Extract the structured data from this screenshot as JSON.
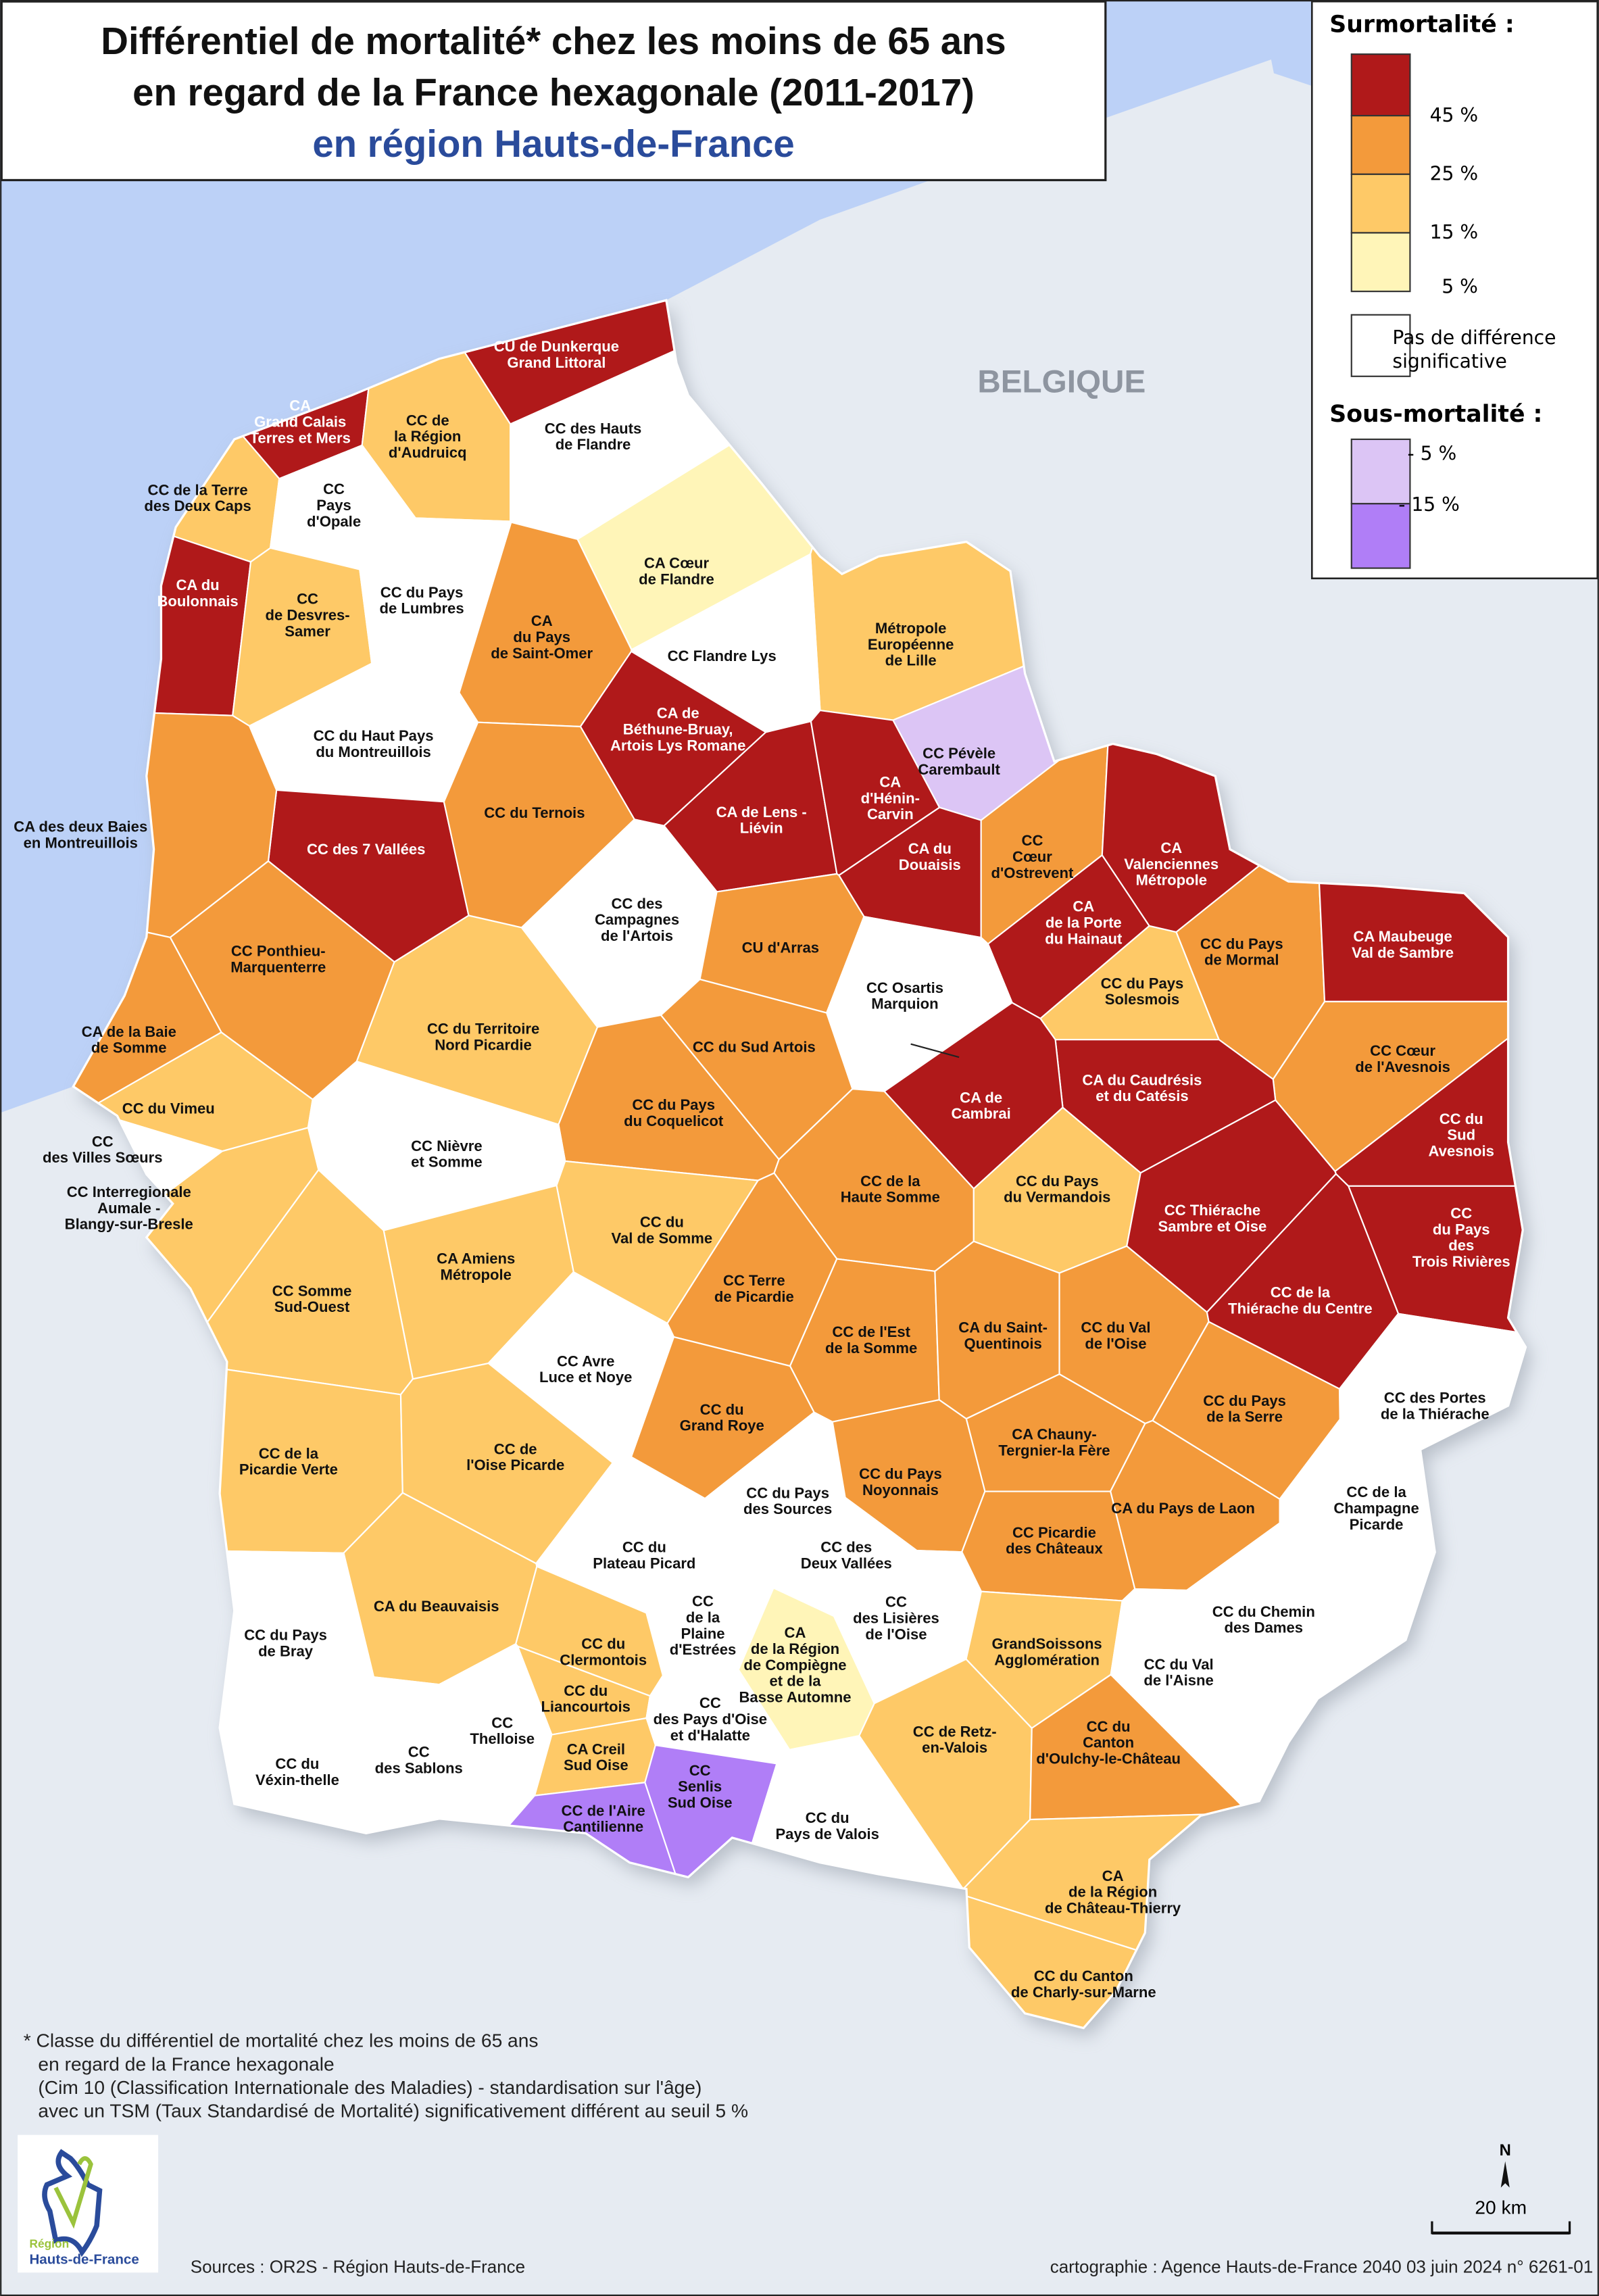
{
  "title": {
    "line1": "Différentiel de mortalité* chez les moins de 65 ans",
    "line2": "en regard de la France hexagonale (2011-2017)",
    "line3": "en région Hauts-de-France"
  },
  "neighbor_label": "BELGIQUE",
  "colors": {
    "sea": "#bcd1f7",
    "land": "#e6ebf2",
    "title_blue": "#2a4b9b",
    "classes": {
      "45": "#b0191a",
      "25": "#f39a3b",
      "15": "#fec967",
      "5": "#fff5b8",
      "ns": "#ffffff",
      "-5": "#dcc5f5",
      "-15": "#b07ef7"
    }
  },
  "legend": {
    "over_title": "Surmortalité :",
    "over_ticks": [
      "45 %",
      "25 %",
      "15 %",
      "5 %"
    ],
    "ns_label": [
      "Pas de différence",
      "significative"
    ],
    "under_title": "Sous-mortalité :",
    "under_ticks": [
      "- 5 %",
      "- 15 %"
    ]
  },
  "footnote": [
    "* Classe du différentiel de mortalité chez les moins de 65 ans",
    "en regard de la France hexagonale",
    "(Cim 10 (Classification Internationale des Maladies) - standardisation sur l'âge)",
    "avec un TSM (Taux Standardisé de Mortalité) significativement différent au seuil 5 %"
  ],
  "logo": {
    "line1": "Région",
    "line2": "Hauts-de-France"
  },
  "sources": "Sources : OR2S - Région Hauts-de-France",
  "credits": "cartographie : Agence Hauts-de-France 2040   03 juin 2024   n° 6261-01",
  "north": "N",
  "scale": "20 km",
  "territories": [
    {
      "name": [
        "CU de Dunkerque",
        "Grand Littoral"
      ],
      "class": "45"
    },
    {
      "name": [
        "CA",
        "Grand Calais",
        "Terres et Mers"
      ],
      "class": "45"
    },
    {
      "name": [
        "CC de",
        "la Région",
        "d'Audruicq"
      ],
      "class": "15"
    },
    {
      "name": [
        "CC des Hauts",
        "de Flandre"
      ],
      "class": "ns"
    },
    {
      "name": [
        "CC de la Terre",
        "des Deux Caps"
      ],
      "class": "15"
    },
    {
      "name": [
        "CC",
        "Pays",
        "d'Opale"
      ],
      "class": "ns"
    },
    {
      "name": [
        "CA Cœur",
        "de Flandre"
      ],
      "class": "5"
    },
    {
      "name": [
        "CA du",
        "Boulonnais"
      ],
      "class": "45"
    },
    {
      "name": [
        "CC",
        "de Desvres-",
        "Samer"
      ],
      "class": "15"
    },
    {
      "name": [
        "CC du Pays",
        "de Lumbres"
      ],
      "class": "ns"
    },
    {
      "name": [
        "CA",
        "du Pays",
        "de Saint-Omer"
      ],
      "class": "25"
    },
    {
      "name": [
        "Métropole",
        "Européenne",
        "de Lille"
      ],
      "class": "15"
    },
    {
      "name": [
        "CC Flandre Lys"
      ],
      "class": "ns"
    },
    {
      "name": [
        "CA de",
        "Béthune-Bruay,",
        "Artois Lys Romane"
      ],
      "class": "45"
    },
    {
      "name": [
        "CC du Haut Pays",
        "du Montreuillois"
      ],
      "class": "ns"
    },
    {
      "name": [
        "CC Pévèle",
        "Carembault"
      ],
      "class": "-5"
    },
    {
      "name": [
        "CA de Lens -",
        "Liévin"
      ],
      "class": "45"
    },
    {
      "name": [
        "CA",
        "d'Hénin-",
        "Carvin"
      ],
      "class": "45"
    },
    {
      "name": [
        "CA du",
        "Douaisis"
      ],
      "class": "45"
    },
    {
      "name": [
        "CC",
        "Cœur",
        "d'Ostrevent"
      ],
      "class": "25"
    },
    {
      "name": [
        "CA",
        "Valenciennes",
        "Métropole"
      ],
      "class": "45"
    },
    {
      "name": [
        "CC des 7 Vallées"
      ],
      "class": "45"
    },
    {
      "name": [
        "CC du Ternois"
      ],
      "class": "25"
    },
    {
      "name": [
        "CA des deux Baies",
        "en Montreuillois"
      ],
      "class": "25"
    },
    {
      "name": [
        "CC des",
        "Campagnes",
        "de l'Artois"
      ],
      "class": "ns"
    },
    {
      "name": [
        "CU d'Arras"
      ],
      "class": "25"
    },
    {
      "name": [
        "CA",
        "de la Porte",
        "du Hainaut"
      ],
      "class": "45"
    },
    {
      "name": [
        "CC du Pays",
        "de Mormal"
      ],
      "class": "25"
    },
    {
      "name": [
        "CA Maubeuge",
        "Val de Sambre"
      ],
      "class": "45"
    },
    {
      "name": [
        "CC Ponthieu-",
        "Marquenterre"
      ],
      "class": "25"
    },
    {
      "name": [
        "CC Osartis",
        "Marquion"
      ],
      "class": "ns"
    },
    {
      "name": [
        "CC du Pays",
        "Solesmois"
      ],
      "class": "15"
    },
    {
      "name": [
        "CA de la Baie",
        "de Somme"
      ],
      "class": "25"
    },
    {
      "name": [
        "CC du Territoire",
        "Nord Picardie"
      ],
      "class": "15"
    },
    {
      "name": [
        "CC du Sud Artois"
      ],
      "class": "25"
    },
    {
      "name": [
        "CC Cœur",
        "de l'Avesnois"
      ],
      "class": "25"
    },
    {
      "name": [
        "CA du Caudrésis",
        "et du Catésis"
      ],
      "class": "45"
    },
    {
      "name": [
        "CA de",
        "Cambrai"
      ],
      "class": "45"
    },
    {
      "name": [
        "CC du Vimeu"
      ],
      "class": "15"
    },
    {
      "name": [
        "CC du Pays",
        "du Coquelicot"
      ],
      "class": "25"
    },
    {
      "name": [
        "CC du",
        "Sud",
        "Avesnois"
      ],
      "class": "45"
    },
    {
      "name": [
        "CC",
        "des Villes Sœurs"
      ],
      "class": "ns"
    },
    {
      "name": [
        "CC Nièvre",
        "et Somme"
      ],
      "class": "ns"
    },
    {
      "name": [
        "CC Interregionale",
        "Aumale -",
        "Blangy-sur-Bresle"
      ],
      "class": "15"
    },
    {
      "name": [
        "CC de la",
        "Haute Somme"
      ],
      "class": "25"
    },
    {
      "name": [
        "CC du Pays",
        "du Vermandois"
      ],
      "class": "15"
    },
    {
      "name": [
        "CC Thiérache",
        "Sambre et Oise"
      ],
      "class": "45"
    },
    {
      "name": [
        "CC",
        "du Pays",
        "des",
        "Trois Rivières"
      ],
      "class": "45"
    },
    {
      "name": [
        "CC du",
        "Val de Somme"
      ],
      "class": "15"
    },
    {
      "name": [
        "CA Amiens",
        "Métropole"
      ],
      "class": "15"
    },
    {
      "name": [
        "CC de la",
        "Thiérache du Centre"
      ],
      "class": "45"
    },
    {
      "name": [
        "CC Somme",
        "Sud-Ouest"
      ],
      "class": "15"
    },
    {
      "name": [
        "CC Terre",
        "de Picardie"
      ],
      "class": "25"
    },
    {
      "name": [
        "CC de l'Est",
        "de la Somme"
      ],
      "class": "25"
    },
    {
      "name": [
        "CA du Saint-",
        "Quentinois"
      ],
      "class": "25"
    },
    {
      "name": [
        "CC du Val",
        "de l'Oise"
      ],
      "class": "25"
    },
    {
      "name": [
        "CC Avre",
        "Luce et Noye"
      ],
      "class": "ns"
    },
    {
      "name": [
        "CC des Portes",
        "de la Thiérache"
      ],
      "class": "ns"
    },
    {
      "name": [
        "CC du Pays",
        "de la Serre"
      ],
      "class": "25"
    },
    {
      "name": [
        "CC du",
        "Grand Roye"
      ],
      "class": "25"
    },
    {
      "name": [
        "CA Chauny-",
        "Tergnier-la Fère"
      ],
      "class": "25"
    },
    {
      "name": [
        "CC de la",
        "Picardie Verte"
      ],
      "class": "15"
    },
    {
      "name": [
        "CC de",
        "l'Oise Picarde"
      ],
      "class": "15"
    },
    {
      "name": [
        "CC du Pays",
        "des Sources"
      ],
      "class": "ns"
    },
    {
      "name": [
        "CC du Pays",
        "Noyonnais"
      ],
      "class": "25"
    },
    {
      "name": [
        "CA du Pays de Laon"
      ],
      "class": "25"
    },
    {
      "name": [
        "CC de la",
        "Champagne",
        "Picarde"
      ],
      "class": "ns"
    },
    {
      "name": [
        "CC Picardie",
        "des Châteaux"
      ],
      "class": "25"
    },
    {
      "name": [
        "CC des",
        "Deux Vallées"
      ],
      "class": "ns"
    },
    {
      "name": [
        "CC du",
        "Plateau Picard"
      ],
      "class": "ns"
    },
    {
      "name": [
        "CA du Beauvaisis"
      ],
      "class": "15"
    },
    {
      "name": [
        "CC",
        "de la",
        "Plaine",
        "d'Estrées"
      ],
      "class": "ns"
    },
    {
      "name": [
        "CC",
        "des Lisières",
        "de l'Oise"
      ],
      "class": "ns"
    },
    {
      "name": [
        "CC du Chemin",
        "des Dames"
      ],
      "class": "ns"
    },
    {
      "name": [
        "CC du Pays",
        "de Bray"
      ],
      "class": "ns"
    },
    {
      "name": [
        "GrandSoissons",
        "Agglomération"
      ],
      "class": "15"
    },
    {
      "name": [
        "CC du",
        "Clermontois"
      ],
      "class": "15"
    },
    {
      "name": [
        "CA",
        "de la Région",
        "de Compiègne",
        "et de la",
        "Basse Automne"
      ],
      "class": "5"
    },
    {
      "name": [
        "CC du Val",
        "de l'Aisne"
      ],
      "class": "ns"
    },
    {
      "name": [
        "CC du",
        "Liancourtois"
      ],
      "class": "15"
    },
    {
      "name": [
        "CC",
        "des Pays d'Oise",
        "et d'Halatte"
      ],
      "class": "ns"
    },
    {
      "name": [
        "CC",
        "Thelloise"
      ],
      "class": "ns"
    },
    {
      "name": [
        "CC",
        "des Sablons"
      ],
      "class": "ns"
    },
    {
      "name": [
        "CC de Retz-",
        "en-Valois"
      ],
      "class": "15"
    },
    {
      "name": [
        "CC du",
        "Canton",
        "d'Oulchy-le-Château"
      ],
      "class": "25"
    },
    {
      "name": [
        "CA Creil",
        "Sud Oise"
      ],
      "class": "15"
    },
    {
      "name": [
        "CC du",
        "Véxin-thelle"
      ],
      "class": "ns"
    },
    {
      "name": [
        "CC",
        "Senlis",
        "Sud Oise"
      ],
      "class": "-15"
    },
    {
      "name": [
        "CC de l'Aire",
        "Cantilienne"
      ],
      "class": "-15"
    },
    {
      "name": [
        "CC du",
        "Pays de Valois"
      ],
      "class": "ns"
    },
    {
      "name": [
        "CA",
        "de la Région",
        "de Château-Thierry"
      ],
      "class": "15"
    },
    {
      "name": [
        "CC du Canton",
        "de Charly-sur-Marne"
      ],
      "class": "15"
    }
  ]
}
